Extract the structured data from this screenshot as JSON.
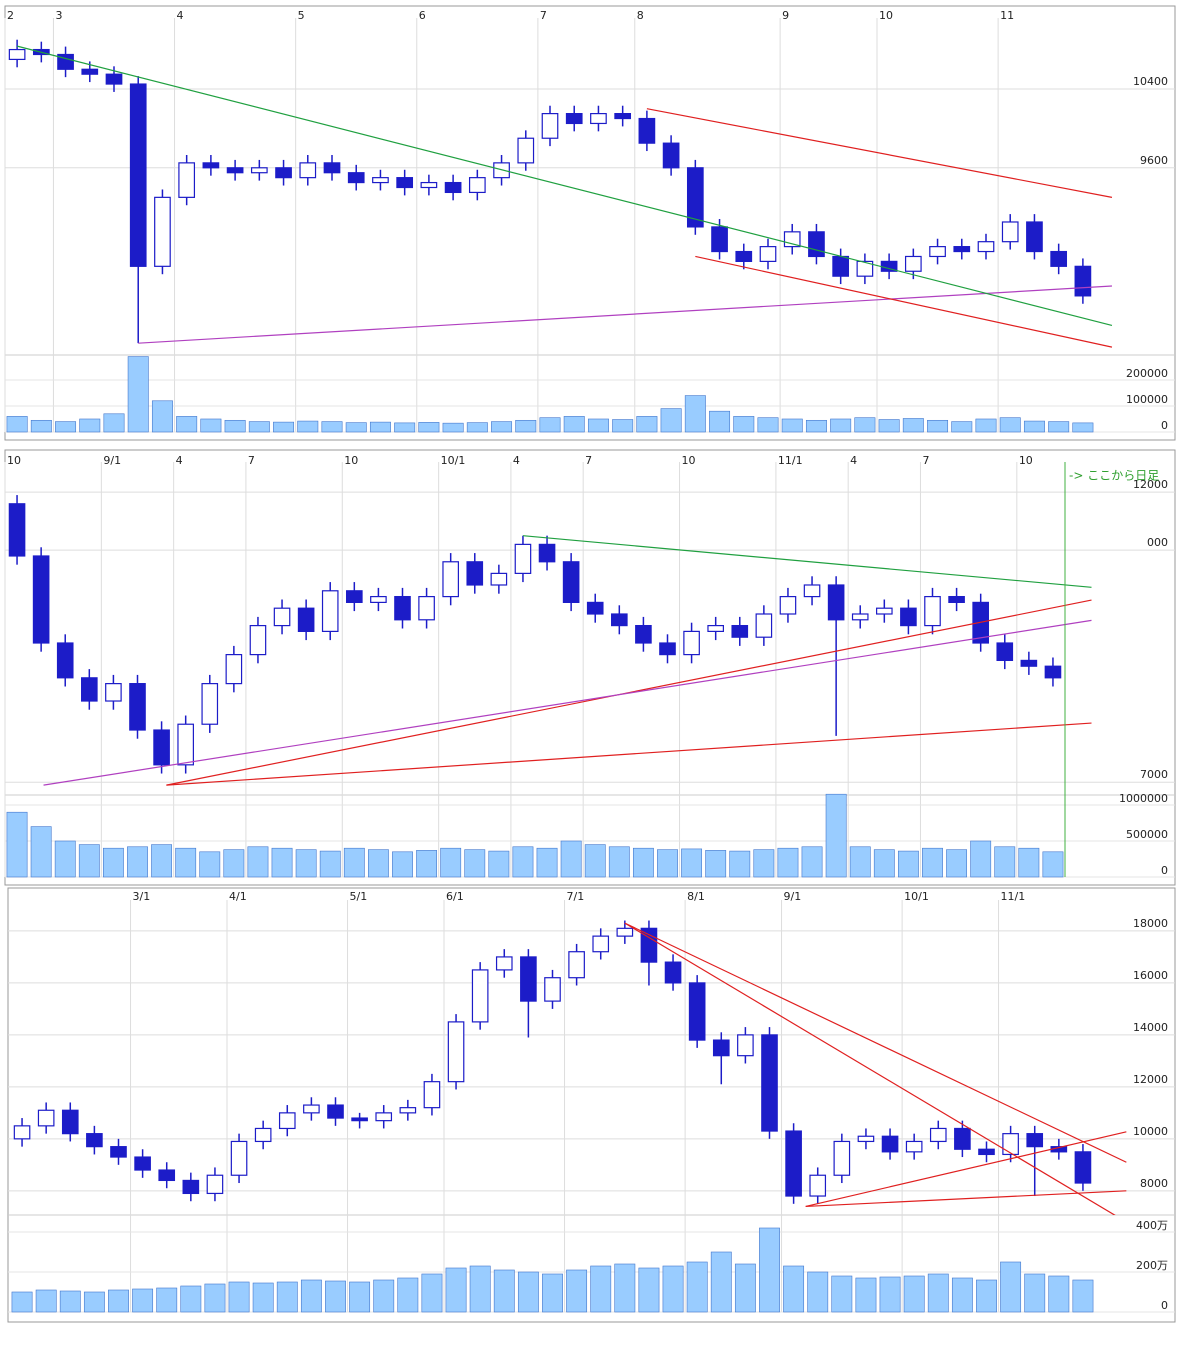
{
  "chart_data": [
    {
      "type": "candlestick",
      "grid": true,
      "categories": [
        "2",
        null,
        "3",
        null,
        null,
        null,
        null,
        "4",
        null,
        null,
        null,
        null,
        "5",
        null,
        null,
        null,
        null,
        "6",
        null,
        null,
        null,
        null,
        "7",
        null,
        null,
        null,
        "8",
        null,
        null,
        null,
        null,
        null,
        "9",
        null,
        null,
        null,
        "10",
        null,
        null,
        null,
        null,
        "11",
        null,
        null,
        null
      ],
      "ohlc": [
        [
          10700,
          10900,
          10620,
          10800
        ],
        [
          10800,
          10880,
          10670,
          10750
        ],
        [
          10750,
          10830,
          10520,
          10600
        ],
        [
          10600,
          10680,
          10470,
          10550
        ],
        [
          10550,
          10630,
          10370,
          10450
        ],
        [
          10450,
          10530,
          7820,
          8600
        ],
        [
          8600,
          9380,
          8520,
          9300
        ],
        [
          9300,
          9730,
          9220,
          9650
        ],
        [
          9650,
          9730,
          9520,
          9600
        ],
        [
          9600,
          9680,
          9470,
          9550
        ],
        [
          9550,
          9680,
          9470,
          9600
        ],
        [
          9600,
          9680,
          9420,
          9500
        ],
        [
          9500,
          9730,
          9420,
          9650
        ],
        [
          9650,
          9730,
          9470,
          9550
        ],
        [
          9550,
          9630,
          9370,
          9450
        ],
        [
          9450,
          9580,
          9370,
          9500
        ],
        [
          9500,
          9580,
          9320,
          9400
        ],
        [
          9400,
          9530,
          9320,
          9450
        ],
        [
          9450,
          9530,
          9270,
          9350
        ],
        [
          9350,
          9580,
          9270,
          9500
        ],
        [
          9500,
          9730,
          9420,
          9650
        ],
        [
          9650,
          9980,
          9570,
          9900
        ],
        [
          9900,
          10230,
          9820,
          10150
        ],
        [
          10150,
          10230,
          9970,
          10050
        ],
        [
          10050,
          10230,
          9970,
          10150
        ],
        [
          10150,
          10230,
          10020,
          10100
        ],
        [
          10100,
          10180,
          9770,
          9850
        ],
        [
          9850,
          9930,
          9520,
          9600
        ],
        [
          9600,
          9680,
          8920,
          9000
        ],
        [
          9000,
          9080,
          8670,
          8750
        ],
        [
          8750,
          8830,
          8570,
          8650
        ],
        [
          8650,
          8880,
          8570,
          8800
        ],
        [
          8800,
          9030,
          8720,
          8950
        ],
        [
          8950,
          9030,
          8620,
          8700
        ],
        [
          8700,
          8780,
          8420,
          8500
        ],
        [
          8500,
          8730,
          8420,
          8650
        ],
        [
          8650,
          8730,
          8470,
          8550
        ],
        [
          8550,
          8780,
          8470,
          8700
        ],
        [
          8700,
          8880,
          8620,
          8800
        ],
        [
          8800,
          8880,
          8670,
          8750
        ],
        [
          8750,
          8930,
          8670,
          8850
        ],
        [
          8850,
          9130,
          8770,
          9050
        ],
        [
          9050,
          9130,
          8670,
          8750
        ],
        [
          8750,
          8830,
          8520,
          8600
        ],
        [
          8600,
          8680,
          8220,
          8300
        ]
      ],
      "volume": [
        60000,
        45000,
        40000,
        50000,
        70000,
        290000,
        120000,
        60000,
        50000,
        45000,
        40000,
        38000,
        42000,
        40000,
        36000,
        38000,
        35000,
        37000,
        34000,
        36000,
        40000,
        45000,
        55000,
        60000,
        50000,
        48000,
        60000,
        90000,
        140000,
        80000,
        60000,
        55000,
        50000,
        45000,
        50000,
        55000,
        48000,
        52000,
        45000,
        40000,
        50000,
        55000,
        42000,
        40000,
        35000
      ],
      "ylim": [
        7700,
        11100
      ],
      "yticks": [
        9600,
        10400
      ],
      "vlim": [
        0,
        296000
      ],
      "vticks": [
        0,
        100000,
        200000
      ],
      "trendlines": [
        {
          "color": "#b040c0",
          "points": [
            [
              5,
              7820
            ],
            [
              45.2,
              8400
            ]
          ]
        },
        {
          "color": "#20a040",
          "points": [
            [
              0,
              10835
            ],
            [
              45.2,
              8000
            ]
          ]
        },
        {
          "color": "#e02020",
          "points": [
            [
              26,
              10200
            ],
            [
              45.2,
              9300
            ]
          ]
        },
        {
          "color": "#e02020",
          "points": [
            [
              28,
              8700
            ],
            [
              45.2,
              7780
            ]
          ]
        }
      ]
    },
    {
      "type": "candlestick",
      "grid": true,
      "annotation": "-> ここから日足",
      "categories": [
        "10",
        null,
        null,
        null,
        "9/1",
        null,
        null,
        "4",
        null,
        null,
        "7",
        null,
        null,
        null,
        "10",
        null,
        null,
        null,
        "10/1",
        null,
        null,
        "4",
        null,
        null,
        "7",
        null,
        null,
        null,
        "10",
        null,
        null,
        null,
        "11/1",
        null,
        null,
        "4",
        null,
        null,
        "7",
        null,
        null,
        null,
        "10",
        null
      ],
      "ohlc": [
        [
          11800,
          11950,
          10750,
          10900
        ],
        [
          10900,
          11050,
          9250,
          9400
        ],
        [
          9400,
          9550,
          8650,
          8800
        ],
        [
          8800,
          8950,
          8250,
          8400
        ],
        [
          8400,
          8850,
          8250,
          8700
        ],
        [
          8700,
          8850,
          7750,
          7900
        ],
        [
          7900,
          8050,
          7150,
          7300
        ],
        [
          7300,
          8150,
          7150,
          8000
        ],
        [
          8000,
          8850,
          7850,
          8700
        ],
        [
          8700,
          9350,
          8550,
          9200
        ],
        [
          9200,
          9850,
          9050,
          9700
        ],
        [
          9700,
          10150,
          9550,
          10000
        ],
        [
          10000,
          10150,
          9450,
          9600
        ],
        [
          9600,
          10450,
          9450,
          10300
        ],
        [
          10300,
          10450,
          9950,
          10100
        ],
        [
          10100,
          10350,
          9950,
          10200
        ],
        [
          10200,
          10350,
          9650,
          9800
        ],
        [
          9800,
          10350,
          9650,
          10200
        ],
        [
          10200,
          10950,
          10050,
          10800
        ],
        [
          10800,
          10950,
          10250,
          10400
        ],
        [
          10400,
          10750,
          10250,
          10600
        ],
        [
          10600,
          11250,
          10450,
          11100
        ],
        [
          11100,
          11250,
          10650,
          10800
        ],
        [
          10800,
          10950,
          9950,
          10100
        ],
        [
          10100,
          10250,
          9750,
          9900
        ],
        [
          9900,
          10050,
          9550,
          9700
        ],
        [
          9700,
          9850,
          9250,
          9400
        ],
        [
          9400,
          9550,
          9050,
          9200
        ],
        [
          9200,
          9750,
          9050,
          9600
        ],
        [
          9600,
          9850,
          9450,
          9700
        ],
        [
          9700,
          9850,
          9350,
          9500
        ],
        [
          9500,
          10050,
          9350,
          9900
        ],
        [
          9900,
          10350,
          9750,
          10200
        ],
        [
          10200,
          10550,
          10050,
          10400
        ],
        [
          10400,
          10550,
          7800,
          9800
        ],
        [
          9800,
          10050,
          9650,
          9900
        ],
        [
          9900,
          10150,
          9750,
          10000
        ],
        [
          10000,
          10150,
          9550,
          9700
        ],
        [
          9700,
          10350,
          9550,
          10200
        ],
        [
          10200,
          10350,
          9950,
          10100
        ],
        [
          10100,
          10250,
          9250,
          9400
        ],
        [
          9400,
          9550,
          8950,
          9100
        ],
        [
          9100,
          9250,
          8850,
          9000
        ],
        [
          9000,
          9150,
          8650,
          8800
        ]
      ],
      "volume": [
        900000,
        700000,
        500000,
        450000,
        400000,
        420000,
        450000,
        400000,
        350000,
        380000,
        420000,
        400000,
        380000,
        360000,
        400000,
        380000,
        350000,
        370000,
        400000,
        380000,
        360000,
        420000,
        400000,
        500000,
        450000,
        420000,
        400000,
        380000,
        390000,
        370000,
        360000,
        380000,
        400000,
        420000,
        1150000,
        420000,
        380000,
        360000,
        400000,
        380000,
        500000,
        420000,
        400000,
        350000
      ],
      "ylim": [
        6780,
        12520
      ],
      "yticks": [
        7000,
        {
          "value": 11000,
          "label": "000"
        },
        12000
      ],
      "vlim": [
        0,
        1139000
      ],
      "vticks": [
        0,
        500000,
        1000000
      ],
      "trendlines": [
        {
          "color": "#e02020",
          "points": [
            [
              6.2,
              6950
            ],
            [
              44.6,
              8020
            ]
          ]
        },
        {
          "color": "#e02020",
          "points": [
            [
              6.2,
              6950
            ],
            [
              44.6,
              10140
            ]
          ]
        },
        {
          "color": "#b040c0",
          "points": [
            [
              1.1,
              6950
            ],
            [
              44.6,
              9790
            ]
          ]
        },
        {
          "color": "#20a040",
          "points": [
            [
              21,
              11250
            ],
            [
              44.6,
              10360
            ]
          ]
        }
      ]
    },
    {
      "type": "candlestick",
      "grid": true,
      "categories": [
        null,
        null,
        null,
        null,
        null,
        "3/1",
        null,
        null,
        null,
        "4/1",
        null,
        null,
        null,
        null,
        "5/1",
        null,
        null,
        null,
        "6/1",
        null,
        null,
        null,
        null,
        "7/1",
        null,
        null,
        null,
        null,
        "8/1",
        null,
        null,
        null,
        "9/1",
        null,
        null,
        null,
        null,
        "10/1",
        null,
        null,
        null,
        "11/1",
        null,
        null,
        null
      ],
      "ohlc": [
        [
          10000,
          10800,
          9700,
          10500
        ],
        [
          10500,
          11400,
          10200,
          11100
        ],
        [
          11100,
          11400,
          9900,
          10200
        ],
        [
          10200,
          10500,
          9400,
          9700
        ],
        [
          9700,
          10000,
          9000,
          9300
        ],
        [
          9300,
          9600,
          8500,
          8800
        ],
        [
          8800,
          9100,
          8100,
          8400
        ],
        [
          8400,
          8700,
          7600,
          7900
        ],
        [
          7900,
          8900,
          7600,
          8600
        ],
        [
          8600,
          10200,
          8300,
          9900
        ],
        [
          9900,
          10700,
          9600,
          10400
        ],
        [
          10400,
          11300,
          10100,
          11000
        ],
        [
          11000,
          11600,
          10700,
          11300
        ],
        [
          11300,
          11600,
          10500,
          10800
        ],
        [
          10800,
          11000,
          10400,
          10700
        ],
        [
          10700,
          11300,
          10400,
          11000
        ],
        [
          11000,
          11500,
          10700,
          11200
        ],
        [
          11200,
          12500,
          10900,
          12200
        ],
        [
          12200,
          14800,
          11900,
          14500
        ],
        [
          14500,
          16800,
          14200,
          16500
        ],
        [
          16500,
          17300,
          16200,
          17000
        ],
        [
          17000,
          17300,
          13900,
          15300
        ],
        [
          15300,
          16500,
          15000,
          16200
        ],
        [
          16200,
          17500,
          15900,
          17200
        ],
        [
          17200,
          18100,
          16900,
          17800
        ],
        [
          17800,
          18400,
          17500,
          18100
        ],
        [
          18100,
          18400,
          15900,
          16800
        ],
        [
          16800,
          17100,
          15700,
          16000
        ],
        [
          16000,
          16300,
          13500,
          13800
        ],
        [
          13800,
          14100,
          12100,
          13200
        ],
        [
          13200,
          14300,
          12900,
          14000
        ],
        [
          14000,
          14300,
          10000,
          10300
        ],
        [
          10300,
          10600,
          7500,
          7800
        ],
        [
          7800,
          8900,
          7500,
          8600
        ],
        [
          8600,
          10200,
          8300,
          9900
        ],
        [
          9900,
          10400,
          9600,
          10100
        ],
        [
          10100,
          10400,
          9200,
          9500
        ],
        [
          9500,
          10200,
          9200,
          9900
        ],
        [
          9900,
          10700,
          9600,
          10400
        ],
        [
          10400,
          10700,
          9300,
          9600
        ],
        [
          9600,
          9900,
          9100,
          9400
        ],
        [
          9400,
          10500,
          9100,
          10200
        ],
        [
          10200,
          10500,
          7800,
          9700
        ],
        [
          9700,
          10000,
          9200,
          9500
        ],
        [
          9500,
          9800,
          8000,
          8300
        ]
      ],
      "volume": [
        1000000,
        1100000,
        1050000,
        1000000,
        1100000,
        1150000,
        1200000,
        1300000,
        1400000,
        1500000,
        1450000,
        1500000,
        1600000,
        1550000,
        1500000,
        1600000,
        1700000,
        1900000,
        2200000,
        2300000,
        2100000,
        2000000,
        1900000,
        2100000,
        2300000,
        2400000,
        2200000,
        2300000,
        2500000,
        3000000,
        2400000,
        4200000,
        2300000,
        2000000,
        1800000,
        1700000,
        1750000,
        1800000,
        1900000,
        1700000,
        1600000,
        2500000,
        1900000,
        1800000,
        1600000
      ],
      "ylim": [
        7070,
        19190
      ],
      "yticks": [
        8000,
        10000,
        12000,
        14000,
        16000,
        18000
      ],
      "vlim": [
        0,
        4850000
      ],
      "vticks": [
        0,
        {
          "value": 2000000,
          "label": "200万"
        },
        {
          "value": 4000000,
          "label": "400万"
        }
      ],
      "trendlines": [
        {
          "color": "#e02020",
          "points": [
            [
              25,
              18300
            ],
            [
              45.8,
              9100
            ]
          ]
        },
        {
          "color": "#e02020",
          "points": [
            [
              25,
              18300
            ],
            [
              45.8,
              6800
            ]
          ]
        },
        {
          "color": "#e02020",
          "points": [
            [
              32.5,
              7400
            ],
            [
              45.8,
              10270
            ]
          ]
        },
        {
          "color": "#e02020",
          "points": [
            [
              32.5,
              7400
            ],
            [
              45.8,
              8000
            ]
          ]
        }
      ]
    }
  ]
}
